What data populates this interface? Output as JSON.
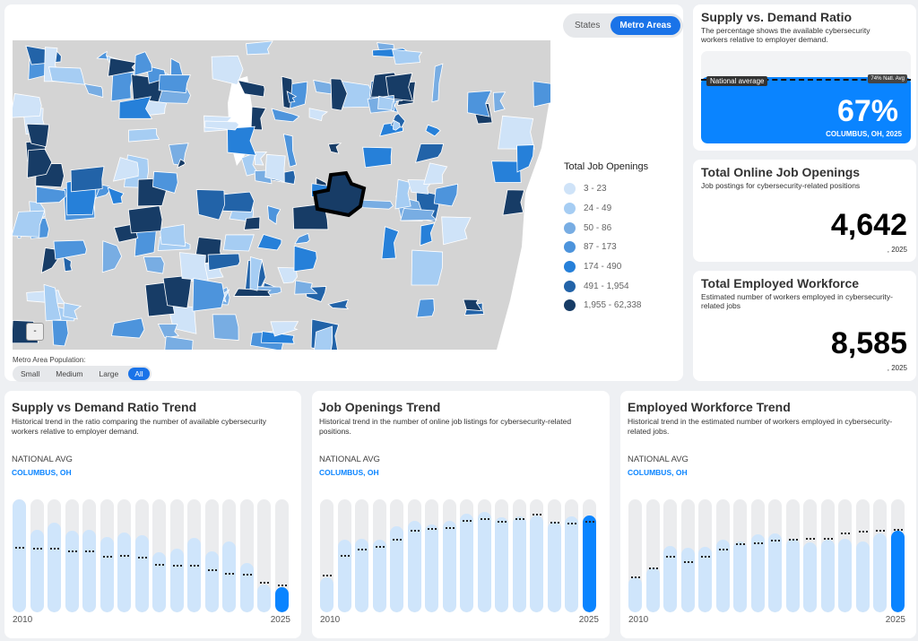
{
  "map": {
    "toggle": [
      "States",
      "Metro Areas"
    ],
    "toggle_active": 1,
    "legend_title": "Total Job Openings",
    "legend": [
      {
        "label": "3 - 23",
        "color": "#cfe3f8"
      },
      {
        "label": "24 - 49",
        "color": "#a6cdf3"
      },
      {
        "label": "50 - 86",
        "color": "#78ade3"
      },
      {
        "label": "87 - 173",
        "color": "#4d94dc"
      },
      {
        "label": "174 - 490",
        "color": "#2680d9"
      },
      {
        "label": "491 - 1,954",
        "color": "#2263a8"
      },
      {
        "label": "1,955 - 62,338",
        "color": "#173c66"
      }
    ],
    "zoom_out": "-",
    "population_label": "Metro Area Population:",
    "population_options": [
      "Small",
      "Medium",
      "Large",
      "All"
    ],
    "population_active": 3
  },
  "ratio": {
    "title": "Supply vs. Demand Ratio",
    "desc": "The percentage shows the available cybersecurity workers relative to employer demand.",
    "value": "67%",
    "value_pct": 67,
    "national_pct": 74,
    "location": "COLUMBUS, OH, 2025",
    "national_label": "National average",
    "national_tag": "74% Natl. Avg"
  },
  "openings": {
    "title": "Total Online Job Openings",
    "desc": "Job postings for cybersecurity-related positions",
    "value": "4,642",
    "year": ", 2025"
  },
  "workforce": {
    "title": "Total Employed Workforce",
    "desc": "Estimated number of workers employed in cybersecurity-related jobs",
    "value": "8,585",
    "year": ", 2025"
  },
  "trends": [
    {
      "title": "Supply vs Demand Ratio Trend",
      "desc": "Historical trend in the ratio comparing the number of available cybersecurity workers relative to employer demand.",
      "national": "NATIONAL AVG",
      "local": "COLUMBUS, OH",
      "start": "2010",
      "end": "2025",
      "values": [
        1.0,
        0.73,
        0.79,
        0.72,
        0.73,
        0.67,
        0.71,
        0.68,
        0.53,
        0.56,
        0.66,
        0.54,
        0.63,
        0.44,
        0.25,
        0.22
      ],
      "avg": [
        0.58,
        0.57,
        0.57,
        0.55,
        0.55,
        0.5,
        0.51,
        0.49,
        0.43,
        0.42,
        0.42,
        0.38,
        0.35,
        0.34,
        0.27,
        0.25
      ]
    },
    {
      "title": "Job Openings Trend",
      "desc": "Historical trend in the number of online job listings for cybersecurity-related positions.",
      "national": "NATIONAL AVG",
      "local": "COLUMBUS, OH",
      "start": "2010",
      "end": "2025",
      "values": [
        0.31,
        0.64,
        0.65,
        0.645,
        0.76,
        0.81,
        0.78,
        0.81,
        0.87,
        0.89,
        0.84,
        0.85,
        0.86,
        0.8,
        0.85,
        0.86
      ],
      "avg": [
        0.33,
        0.51,
        0.56,
        0.59,
        0.65,
        0.73,
        0.75,
        0.755,
        0.82,
        0.83,
        0.81,
        0.83,
        0.87,
        0.8,
        0.795,
        0.81
      ]
    },
    {
      "title": "Employed Workforce Trend",
      "desc": "Historical trend in the estimated number of workers employed in cybersecurity-related jobs.",
      "national": "NATIONAL AVG",
      "local": "COLUMBUS, OH",
      "start": "2010",
      "end": "2025",
      "values": [
        0.31,
        0.4,
        0.59,
        0.57,
        0.58,
        0.64,
        0.63,
        0.69,
        0.7,
        0.65,
        0.62,
        0.64,
        0.65,
        0.63,
        0.7,
        0.72
      ],
      "avg": [
        0.32,
        0.4,
        0.5,
        0.45,
        0.5,
        0.56,
        0.61,
        0.62,
        0.64,
        0.65,
        0.66,
        0.66,
        0.71,
        0.72,
        0.73,
        0.74
      ]
    }
  ]
}
